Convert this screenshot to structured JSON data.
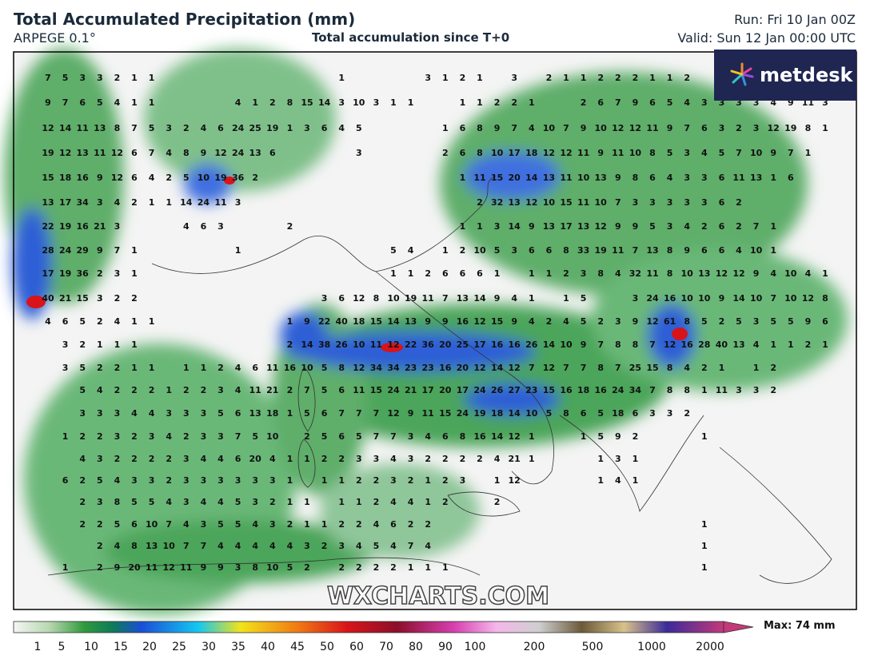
{
  "header": {
    "title": "Total Accumulated Precipitation (mm)",
    "model": "ARPEGE 0.1°",
    "subtitle": "Total accumulation since T+0",
    "run": "Run: Fri 10 Jan 00Z",
    "valid": "Valid: Sun 12 Jan 00:00 UTC"
  },
  "logo": "metdesk",
  "watermark": "WXCHARTS.COM",
  "colorbar": {
    "ticks": [
      1,
      5,
      10,
      15,
      20,
      25,
      30,
      35,
      40,
      45,
      50,
      60,
      70,
      80,
      90,
      100,
      200,
      500,
      1000,
      2000
    ],
    "max_label": "Max: 74 mm"
  },
  "grid": {
    "rows": [
      [
        7,
        5,
        3,
        3,
        2,
        1,
        1,
        null,
        null,
        null,
        null,
        null,
        null,
        null,
        null,
        null,
        null,
        1,
        null,
        null,
        null,
        null,
        3,
        1,
        2,
        1,
        null,
        3,
        null,
        2,
        1,
        1,
        2,
        2,
        2,
        1,
        1,
        2,
        null,
        null,
        null,
        null,
        null,
        null,
        null,
        null
      ],
      [
        9,
        7,
        6,
        5,
        4,
        1,
        1,
        null,
        null,
        null,
        null,
        4,
        1,
        2,
        8,
        15,
        14,
        3,
        10,
        3,
        1,
        1,
        null,
        null,
        1,
        1,
        2,
        2,
        1,
        null,
        null,
        2,
        6,
        7,
        9,
        6,
        5,
        4,
        3,
        3,
        3,
        3,
        4,
        9,
        11,
        3
      ],
      [
        12,
        14,
        11,
        13,
        8,
        7,
        5,
        3,
        2,
        4,
        6,
        24,
        25,
        19,
        1,
        3,
        6,
        4,
        5,
        null,
        null,
        null,
        null,
        1,
        6,
        8,
        9,
        7,
        4,
        10,
        7,
        9,
        10,
        12,
        12,
        11,
        9,
        7,
        6,
        3,
        2,
        3,
        12,
        19,
        8,
        1
      ],
      [
        19,
        12,
        13,
        11,
        12,
        6,
        7,
        4,
        8,
        9,
        12,
        24,
        13,
        6,
        null,
        null,
        null,
        null,
        3,
        null,
        null,
        null,
        null,
        2,
        6,
        8,
        10,
        17,
        18,
        12,
        12,
        11,
        9,
        11,
        10,
        8,
        5,
        3,
        4,
        5,
        7,
        10,
        9,
        7,
        1,
        null
      ],
      [
        15,
        18,
        16,
        9,
        12,
        6,
        4,
        2,
        5,
        10,
        19,
        36,
        2,
        null,
        null,
        null,
        null,
        null,
        null,
        null,
        null,
        null,
        null,
        null,
        1,
        11,
        15,
        20,
        14,
        13,
        11,
        10,
        13,
        9,
        8,
        6,
        4,
        3,
        3,
        6,
        11,
        13,
        1,
        6,
        null,
        null
      ],
      [
        13,
        17,
        34,
        3,
        4,
        2,
        1,
        1,
        14,
        24,
        11,
        3,
        null,
        null,
        null,
        null,
        null,
        null,
        null,
        null,
        null,
        null,
        null,
        null,
        null,
        2,
        32,
        13,
        12,
        10,
        15,
        11,
        10,
        7,
        3,
        3,
        3,
        3,
        3,
        6,
        2,
        null,
        null,
        null,
        null,
        null
      ],
      [
        22,
        19,
        16,
        21,
        3,
        null,
        null,
        null,
        4,
        6,
        3,
        null,
        null,
        null,
        2,
        null,
        null,
        null,
        null,
        null,
        null,
        null,
        null,
        null,
        1,
        1,
        3,
        14,
        9,
        13,
        17,
        13,
        12,
        9,
        9,
        5,
        3,
        4,
        2,
        6,
        2,
        7,
        1,
        null,
        null,
        null
      ],
      [
        28,
        24,
        29,
        9,
        7,
        1,
        null,
        null,
        null,
        null,
        null,
        1,
        null,
        null,
        null,
        null,
        null,
        null,
        null,
        null,
        5,
        4,
        null,
        1,
        2,
        10,
        5,
        3,
        6,
        6,
        8,
        33,
        19,
        11,
        7,
        13,
        8,
        9,
        6,
        6,
        4,
        10,
        1,
        null,
        null,
        null
      ],
      [
        17,
        19,
        36,
        2,
        3,
        1,
        null,
        null,
        null,
        null,
        null,
        null,
        null,
        null,
        null,
        null,
        null,
        null,
        null,
        null,
        1,
        1,
        2,
        6,
        6,
        6,
        1,
        null,
        1,
        1,
        2,
        3,
        8,
        4,
        32,
        11,
        8,
        10,
        13,
        12,
        12,
        9,
        4,
        10,
        4,
        1
      ],
      [
        40,
        21,
        15,
        3,
        2,
        2,
        null,
        null,
        null,
        null,
        null,
        null,
        null,
        null,
        null,
        null,
        3,
        6,
        12,
        8,
        10,
        19,
        11,
        7,
        13,
        14,
        9,
        4,
        1,
        null,
        1,
        5,
        null,
        null,
        3,
        24,
        16,
        10,
        10,
        9,
        14,
        10,
        7,
        10,
        12,
        8
      ],
      [
        4,
        6,
        5,
        2,
        4,
        1,
        1,
        null,
        null,
        null,
        null,
        null,
        null,
        null,
        1,
        9,
        22,
        40,
        18,
        15,
        14,
        13,
        9,
        9,
        16,
        12,
        15,
        9,
        4,
        2,
        4,
        5,
        2,
        3,
        9,
        12,
        61,
        8,
        5,
        2,
        5,
        3,
        5,
        5,
        9,
        6
      ],
      [
        null,
        3,
        2,
        1,
        1,
        1,
        null,
        null,
        null,
        null,
        null,
        null,
        null,
        null,
        2,
        14,
        38,
        26,
        10,
        11,
        12,
        22,
        36,
        20,
        25,
        17,
        16,
        16,
        26,
        14,
        10,
        9,
        7,
        8,
        8,
        7,
        12,
        16,
        28,
        40,
        13,
        4,
        1,
        1,
        2,
        1
      ],
      [
        null,
        3,
        5,
        2,
        2,
        1,
        1,
        null,
        1,
        1,
        2,
        4,
        6,
        11,
        16,
        10,
        5,
        8,
        12,
        34,
        34,
        23,
        23,
        16,
        20,
        12,
        14,
        12,
        7,
        12,
        7,
        7,
        8,
        7,
        25,
        15,
        8,
        4,
        2,
        1,
        null,
        1,
        2,
        null,
        null,
        null
      ],
      [
        null,
        null,
        5,
        4,
        2,
        2,
        2,
        1,
        2,
        2,
        3,
        4,
        11,
        21,
        2,
        7,
        5,
        6,
        11,
        15,
        24,
        21,
        17,
        20,
        17,
        24,
        26,
        27,
        23,
        15,
        16,
        18,
        16,
        24,
        34,
        7,
        8,
        8,
        1,
        11,
        3,
        3,
        2,
        null,
        null,
        null
      ],
      [
        null,
        null,
        3,
        3,
        3,
        4,
        4,
        3,
        3,
        3,
        5,
        6,
        13,
        18,
        1,
        5,
        6,
        7,
        7,
        7,
        12,
        9,
        11,
        15,
        24,
        19,
        18,
        14,
        10,
        5,
        8,
        6,
        5,
        18,
        6,
        3,
        3,
        2,
        null,
        null,
        null,
        null,
        null,
        null,
        null,
        null
      ],
      [
        null,
        1,
        2,
        2,
        3,
        2,
        3,
        4,
        2,
        3,
        3,
        7,
        5,
        10,
        null,
        2,
        5,
        6,
        5,
        7,
        7,
        3,
        4,
        6,
        8,
        16,
        14,
        12,
        1,
        null,
        null,
        1,
        5,
        9,
        2,
        null,
        null,
        null,
        1,
        null,
        null,
        null,
        null,
        null,
        null,
        null
      ],
      [
        null,
        null,
        4,
        3,
        2,
        2,
        2,
        2,
        3,
        4,
        4,
        6,
        20,
        4,
        1,
        1,
        2,
        2,
        3,
        3,
        4,
        3,
        2,
        2,
        2,
        2,
        4,
        21,
        1,
        null,
        null,
        null,
        1,
        3,
        1,
        null,
        null,
        null,
        null,
        null,
        null,
        null,
        null,
        null,
        null,
        null
      ],
      [
        null,
        6,
        2,
        5,
        4,
        3,
        3,
        2,
        3,
        3,
        3,
        3,
        3,
        3,
        1,
        null,
        1,
        1,
        2,
        2,
        3,
        2,
        1,
        2,
        3,
        null,
        1,
        12,
        null,
        null,
        null,
        null,
        1,
        4,
        1,
        null,
        null,
        null,
        null,
        null,
        null,
        null,
        null,
        null,
        null,
        null
      ],
      [
        null,
        null,
        2,
        3,
        8,
        5,
        5,
        4,
        3,
        4,
        4,
        5,
        3,
        2,
        1,
        1,
        null,
        1,
        1,
        2,
        4,
        4,
        1,
        2,
        null,
        null,
        2,
        null,
        null,
        null,
        null,
        null,
        null,
        null,
        null,
        null,
        null,
        null,
        null,
        null,
        null,
        null,
        null,
        null,
        null,
        null
      ],
      [
        null,
        null,
        2,
        2,
        5,
        6,
        10,
        7,
        4,
        3,
        5,
        5,
        4,
        3,
        2,
        1,
        1,
        2,
        2,
        4,
        6,
        2,
        2,
        null,
        null,
        null,
        null,
        null,
        null,
        null,
        null,
        null,
        null,
        null,
        null,
        null,
        null,
        null,
        1,
        null,
        null,
        null,
        null,
        null,
        null,
        null
      ],
      [
        null,
        null,
        null,
        2,
        4,
        8,
        13,
        10,
        7,
        7,
        4,
        4,
        4,
        4,
        4,
        3,
        2,
        3,
        4,
        5,
        4,
        7,
        4,
        null,
        null,
        null,
        null,
        null,
        null,
        null,
        null,
        null,
        null,
        null,
        null,
        null,
        null,
        null,
        1,
        null,
        null,
        null,
        null,
        null,
        null,
        null
      ],
      [
        null,
        1,
        null,
        2,
        9,
        20,
        11,
        12,
        11,
        9,
        9,
        3,
        8,
        10,
        5,
        2,
        null,
        2,
        2,
        2,
        2,
        1,
        1,
        1,
        null,
        null,
        null,
        null,
        null,
        null,
        null,
        null,
        null,
        null,
        null,
        null,
        null,
        null,
        1,
        null,
        null,
        null,
        null,
        null,
        null,
        null
      ]
    ]
  }
}
